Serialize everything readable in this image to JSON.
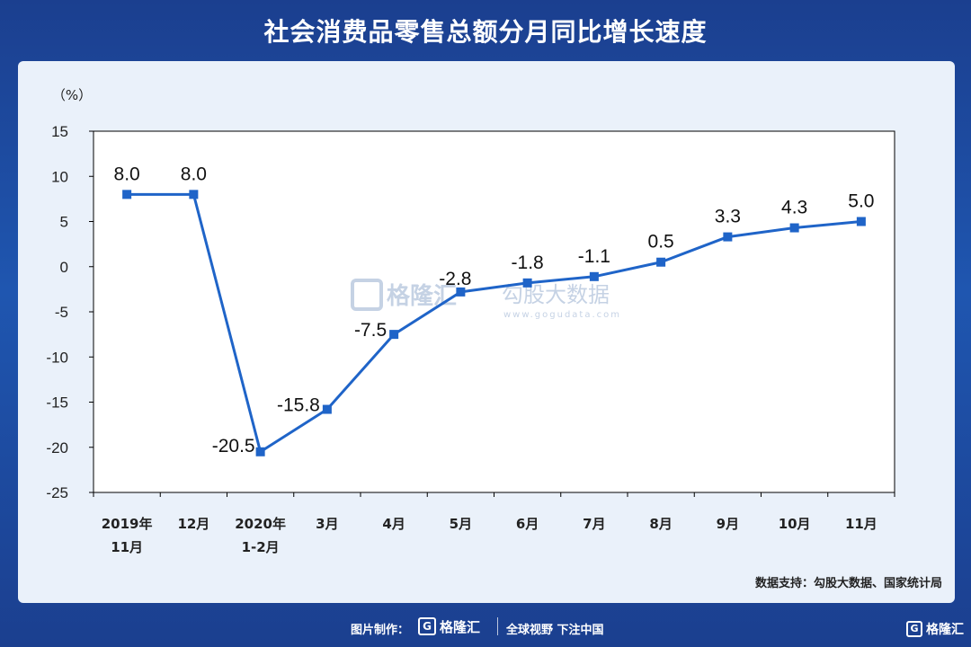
{
  "title": "社会消费品零售总额分月同比增长速度",
  "source_note": "数据支持：勾股大数据、国家统计局",
  "footer": {
    "credit": "图片制作：",
    "brand": "格隆汇",
    "brand_icon": "G",
    "slogan": "全球视野 下注中国"
  },
  "watermark": {
    "brand": "格隆汇",
    "brand2": "勾股大数据",
    "url": "www.gogudata.com"
  },
  "corner_logo": {
    "icon": "G",
    "text": "格隆汇"
  },
  "chart_data": {
    "type": "line",
    "ylabel": "（%）",
    "ylim": [
      -25,
      15
    ],
    "yticks": [
      15,
      10,
      5,
      0,
      -5,
      -10,
      -15,
      -20,
      -25
    ],
    "categories": [
      [
        "2019年",
        "11月"
      ],
      [
        "12月"
      ],
      [
        "2020年",
        "1-2月"
      ],
      [
        "3月"
      ],
      [
        "4月"
      ],
      [
        "5月"
      ],
      [
        "6月"
      ],
      [
        "7月"
      ],
      [
        "8月"
      ],
      [
        "9月"
      ],
      [
        "10月"
      ],
      [
        "11月"
      ]
    ],
    "values": [
      8.0,
      8.0,
      -20.5,
      -15.8,
      -7.5,
      -2.8,
      -1.8,
      -1.1,
      0.5,
      3.3,
      4.3,
      5.0
    ],
    "data_labels": [
      "8.0",
      "8.0",
      "-20.5",
      "-15.8",
      "-7.5",
      "-2.8",
      "-1.8",
      "-1.1",
      "0.5",
      "3.3",
      "4.3",
      "5.0"
    ],
    "line_color": "#1f64c8",
    "grid": false
  }
}
